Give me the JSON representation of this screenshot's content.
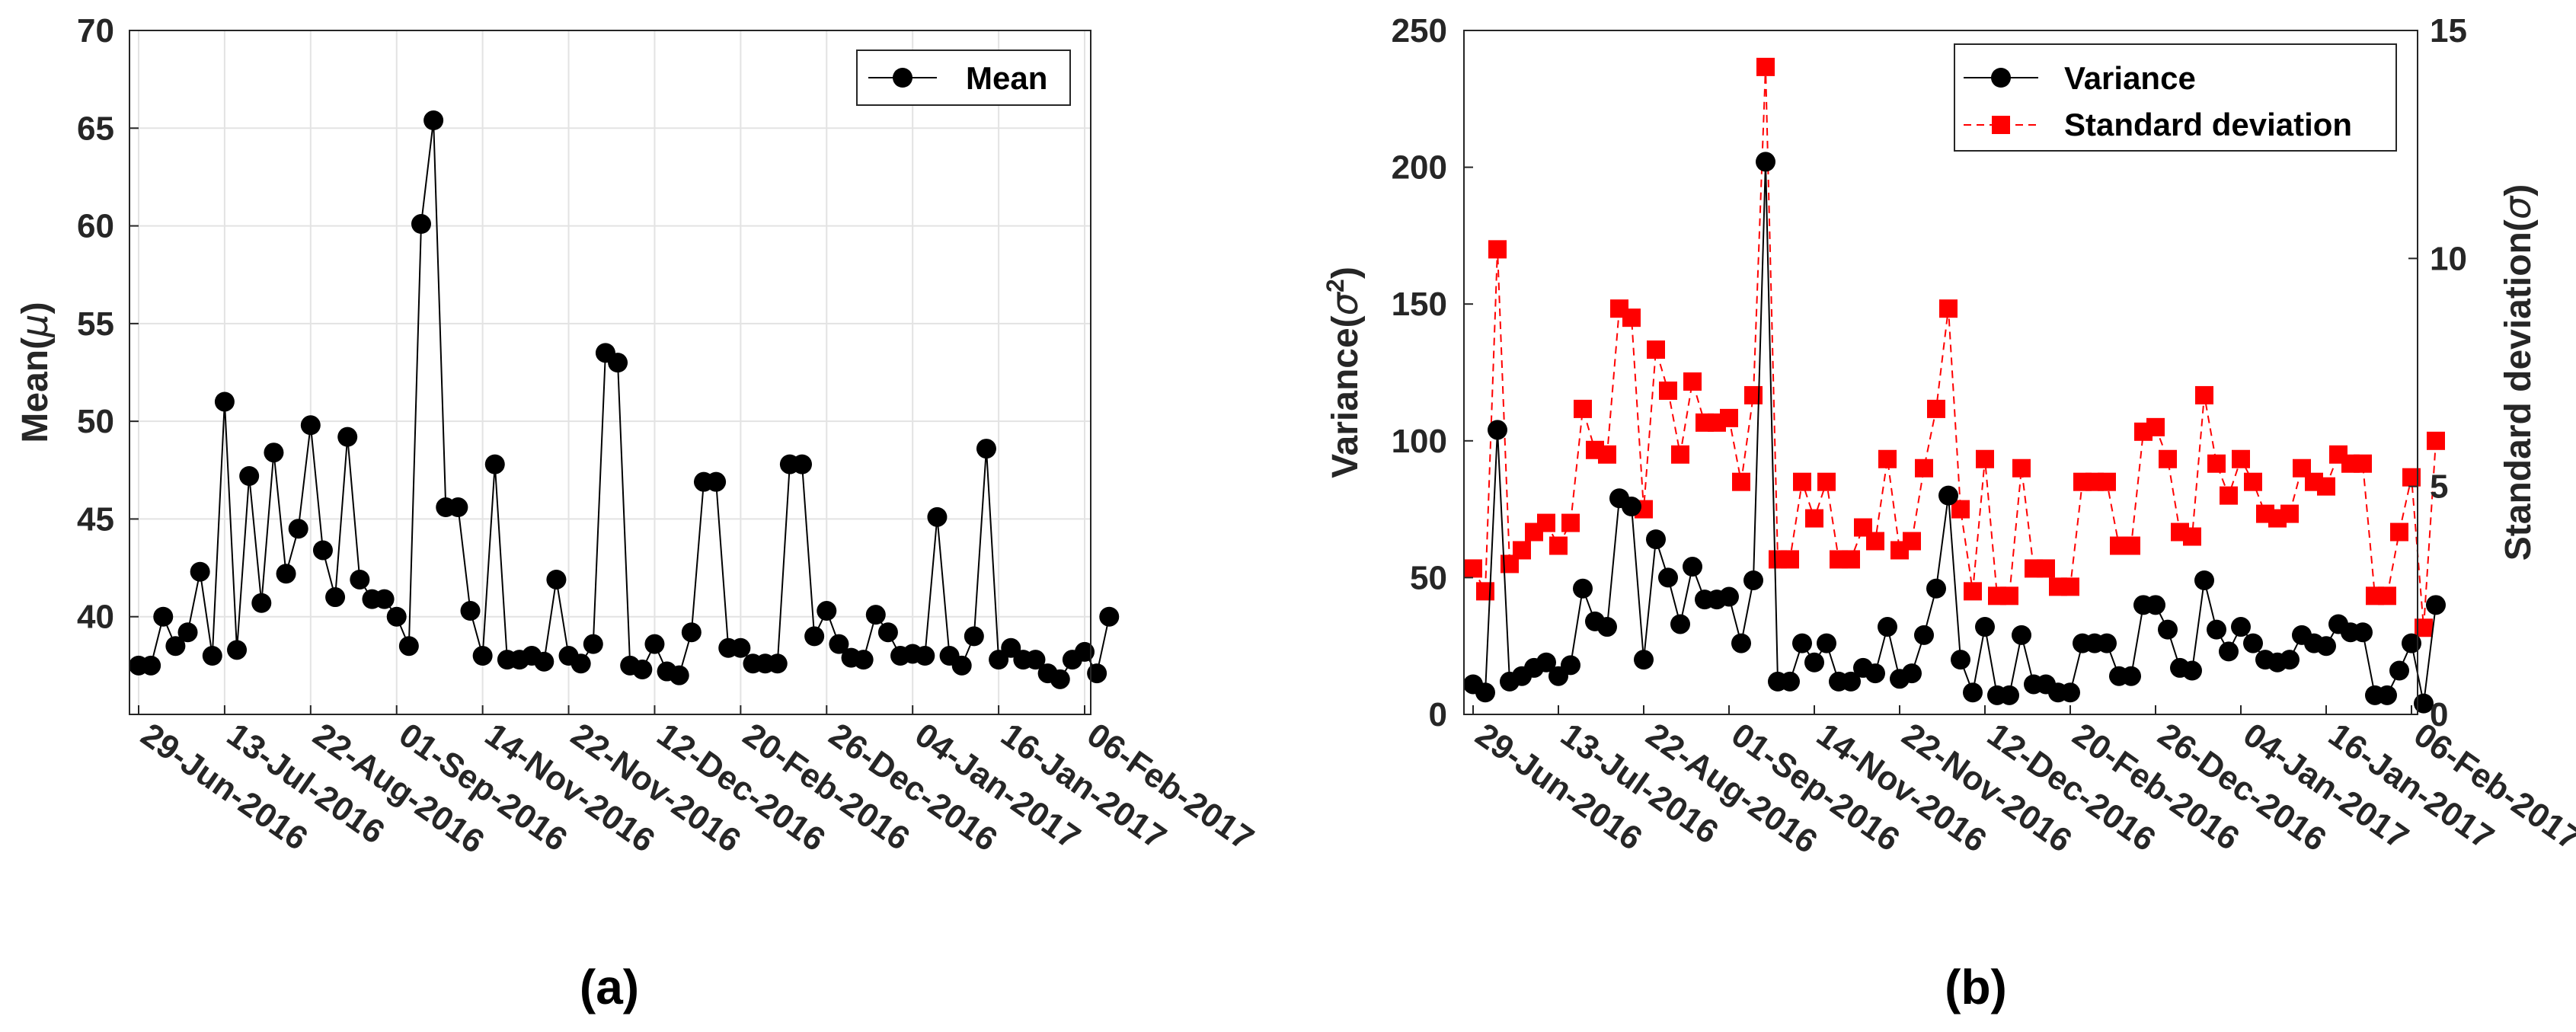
{
  "chart_data": [
    {
      "type": "line",
      "panel_label": "(a)",
      "ylabel": "Mean(μ)",
      "ylabel_text": "Mean(",
      "ylabel_symbol": "μ",
      "ylabel_close": ")",
      "xlabel": "",
      "ylim": [
        35,
        70
      ],
      "yticks": [
        40,
        45,
        50,
        55,
        60,
        65,
        70
      ],
      "grid": true,
      "legend_position": "top-right",
      "xticks": [
        "29-Jun-2016",
        "13-Jul-2016",
        "22-Aug-2016",
        "01-Sep-2016",
        "14-Nov-2016",
        "22-Nov-2016",
        "12-Dec-2016",
        "20-Feb-2016",
        "26-Dec-2016",
        "04-Jan-2017",
        "16-Jan-2017",
        "06-Feb-2017"
      ],
      "xlim": [
        0,
        77
      ],
      "colors": {
        "line": "#000000",
        "marker": "#000000"
      },
      "series": [
        {
          "name": "Mean",
          "values": [
            37.5,
            37.5,
            40,
            38.5,
            39.2,
            42.3,
            38,
            51,
            38.3,
            47.2,
            40.7,
            48.4,
            42.2,
            44.5,
            49.8,
            43.4,
            41,
            49.2,
            41.9,
            40.9,
            40.9,
            40,
            38.5,
            60.1,
            65.4,
            45.6,
            45.6,
            40.3,
            38,
            47.8,
            37.8,
            37.8,
            38,
            37.7,
            41.9,
            38,
            37.6,
            38.6,
            53.5,
            53,
            37.5,
            37.3,
            38.6,
            37.2,
            37,
            39.2,
            46.9,
            46.9,
            38.4,
            38.4,
            37.6,
            37.6,
            37.6,
            47.8,
            47.8,
            39,
            40.3,
            38.6,
            37.9,
            37.8,
            40.1,
            39.2,
            38,
            38.1,
            38,
            45.1,
            38,
            37.5,
            39,
            48.6,
            37.8,
            38.4,
            37.8,
            37.8,
            37.1,
            36.8,
            37.8,
            38.2,
            37.1,
            40
          ]
        }
      ]
    },
    {
      "type": "line",
      "panel_label": "(b)",
      "ylabel_left": "Variance(σ²)",
      "ylabel_left_text": "Variance(",
      "ylabel_left_symbol": "σ",
      "ylabel_left_sup": "2",
      "ylabel_left_close": ")",
      "ylabel_right": "Standard deviation(σ)",
      "ylabel_right_text": "Standard deviation(",
      "ylabel_right_symbol": "σ",
      "ylabel_right_close": ")",
      "ylim_left": [
        0,
        250
      ],
      "yticks_left": [
        0,
        50,
        100,
        150,
        200,
        250
      ],
      "ylim_right": [
        0,
        15
      ],
      "yticks_right": [
        0,
        5,
        10,
        15
      ],
      "grid": false,
      "legend_position": "top-right",
      "xticks": [
        "29-Jun-2016",
        "13-Jul-2016",
        "22-Aug-2016",
        "01-Sep-2016",
        "14-Nov-2016",
        "22-Nov-2016",
        "12-Dec-2016",
        "20-Feb-2016",
        "26-Dec-2016",
        "04-Jan-2017",
        "16-Jan-2017",
        "06-Feb-2017"
      ],
      "xlim": [
        0,
        77
      ],
      "colors": {
        "variance": "#000000",
        "stddev": "#ff0000"
      },
      "series": [
        {
          "name": "Variance",
          "axis": "left",
          "values": [
            11,
            8,
            104,
            12,
            14,
            17,
            19,
            14,
            18,
            46,
            34,
            32,
            79,
            76,
            20,
            64,
            50,
            33,
            54,
            42,
            42,
            43,
            26,
            49,
            202,
            12,
            12,
            26,
            19,
            26,
            12,
            12,
            17,
            15,
            32,
            13,
            15,
            29,
            46,
            80,
            20,
            8,
            32,
            7,
            7,
            29,
            11,
            11,
            8,
            8,
            26,
            26,
            26,
            14,
            14,
            40,
            40,
            31,
            17,
            16,
            49,
            31,
            23,
            32,
            26,
            20,
            19,
            20,
            29,
            26,
            25,
            33,
            30,
            30,
            7,
            7,
            16,
            26,
            4,
            40
          ]
        },
        {
          "name": "Standard deviation",
          "axis": "right",
          "values": [
            3.2,
            2.7,
            10.2,
            3.3,
            3.6,
            4,
            4.2,
            3.7,
            4.2,
            6.7,
            5.8,
            5.7,
            8.9,
            8.7,
            4.5,
            8,
            7.1,
            5.7,
            7.3,
            6.4,
            6.4,
            6.5,
            5.1,
            7,
            14.2,
            3.4,
            3.4,
            5.1,
            4.3,
            5.1,
            3.4,
            3.4,
            4.1,
            3.8,
            5.6,
            3.6,
            3.8,
            5.4,
            6.7,
            8.9,
            4.5,
            2.7,
            5.6,
            2.6,
            2.6,
            5.4,
            3.2,
            3.2,
            2.8,
            2.8,
            5.1,
            5.1,
            5.1,
            3.7,
            3.7,
            6.2,
            6.3,
            5.6,
            4,
            3.9,
            7,
            5.5,
            4.8,
            5.6,
            5.1,
            4.4,
            4.3,
            4.4,
            5.4,
            5.1,
            5,
            5.7,
            5.5,
            5.5,
            2.6,
            2.6,
            4,
            5.2,
            1.9,
            6
          ]
        }
      ]
    }
  ]
}
